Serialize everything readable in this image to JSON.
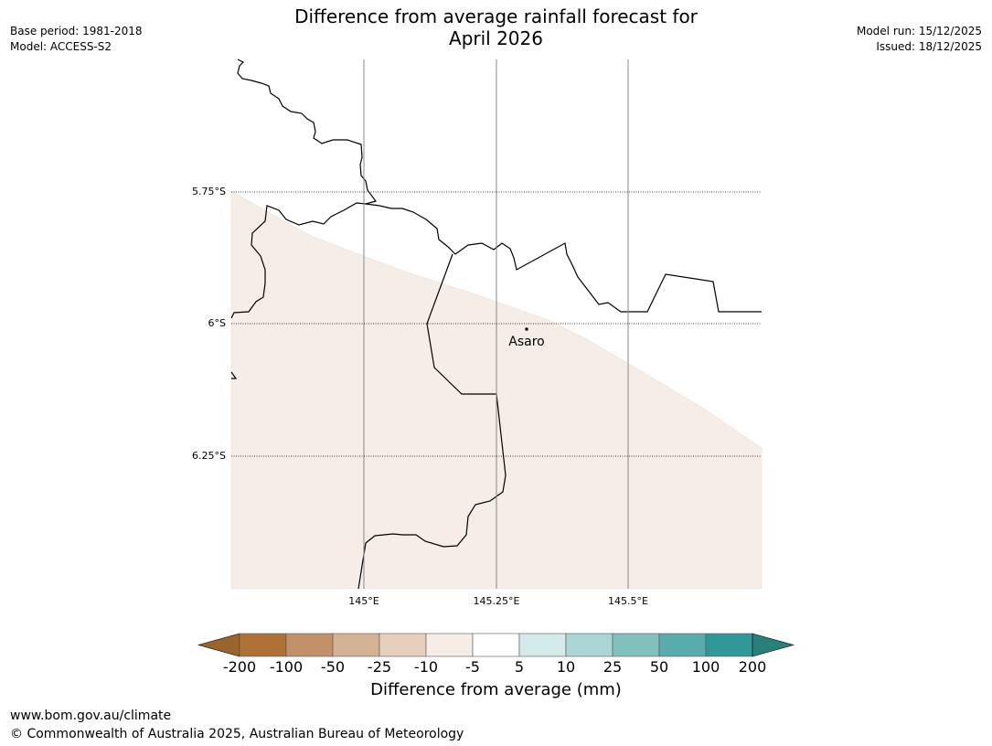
{
  "header": {
    "title_line1": "Difference from average rainfall forecast for",
    "title_line2": "April 2026",
    "base_period": "Base period: 1981-2018",
    "model": "Model: ACCESS-S2",
    "model_run": "Model run: 15/12/2025",
    "issued": "Issued: 18/12/2025"
  },
  "map": {
    "lat_labels": [
      "5.75°S",
      "6°S",
      "6.25°S"
    ],
    "lon_labels": [
      "145°E",
      "145.25°E",
      "145.5°E"
    ],
    "place": {
      "name": "Asaro"
    },
    "shading_color": "#f5ede6",
    "coast_color": "#000000",
    "grid_color": "#888888"
  },
  "colorbar": {
    "title": "Difference from average (mm)",
    "labels": [
      "-200",
      "-100",
      "-50",
      "-25",
      "-10",
      "-5",
      "5",
      "10",
      "25",
      "50",
      "100",
      "200"
    ],
    "colors": [
      "#ae7237",
      "#c29167",
      "#d4b393",
      "#e6d0bd",
      "#f6ede6",
      "#ffffff",
      "#d5eaea",
      "#acd5d5",
      "#82c0bc",
      "#59abac",
      "#319898"
    ],
    "low_extend_color": "#9a642d",
    "high_extend_color": "#2b7f7b"
  },
  "footer": {
    "url": "www.bom.gov.au/climate",
    "copyright": "© Commonwealth of Australia 2025, Australian Bureau of Meteorology"
  }
}
